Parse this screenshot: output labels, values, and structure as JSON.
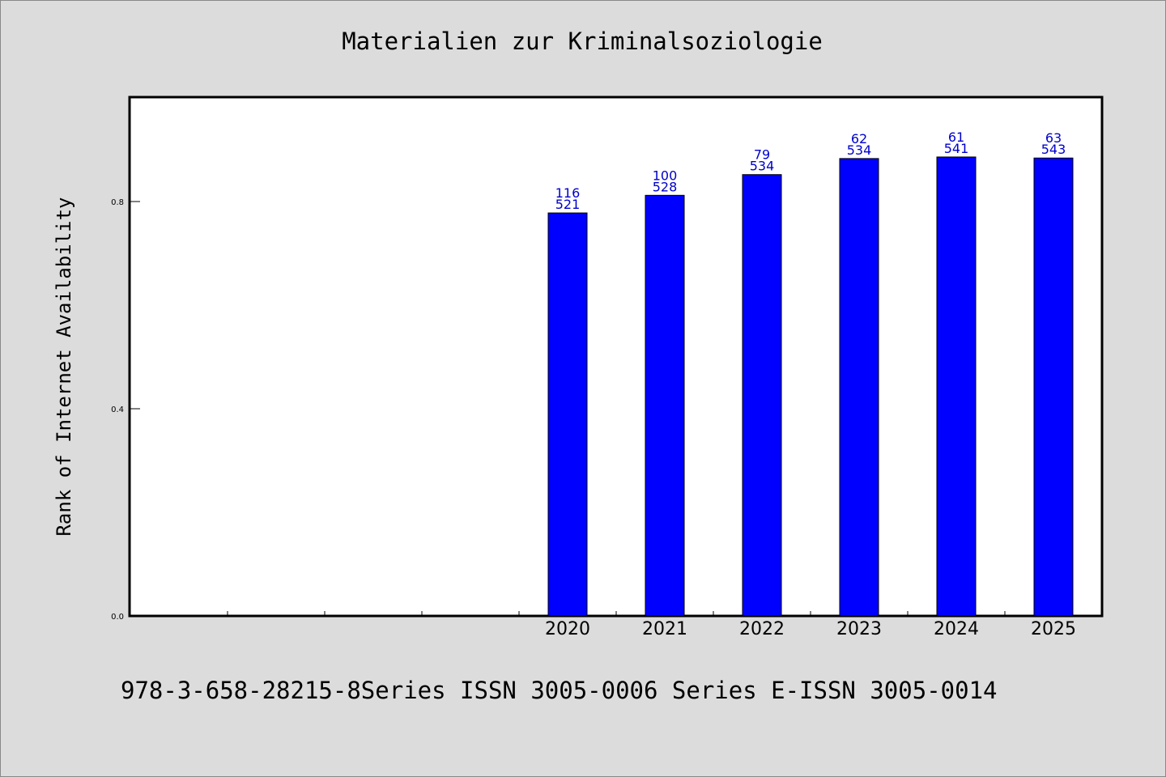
{
  "chart_data": {
    "type": "bar",
    "title": "Materialien zur Kriminalsoziologie",
    "ylabel": "Rank of Internet Availability",
    "xlabel": "",
    "footer": "978-3-658-28215-8Series ISSN 3005-0006 Series E-ISSN 3005-0014",
    "categories": [
      "",
      "",
      "",
      "",
      "2020",
      "2021",
      "2022",
      "2023",
      "2024",
      "2025"
    ],
    "values": [
      null,
      null,
      null,
      null,
      0.778,
      0.812,
      0.852,
      0.883,
      0.886,
      0.884
    ],
    "labels_top": [
      "",
      "",
      "",
      "",
      "116",
      "100",
      "79",
      "62",
      "61",
      "63"
    ],
    "labels_bottom": [
      "",
      "",
      "",
      "",
      "521",
      "528",
      "534",
      "534",
      "541",
      "543"
    ],
    "yticks": [
      "0.0",
      "0.4",
      "0.8"
    ],
    "ylim": [
      0,
      1.0
    ],
    "bar_color": "#0000ff",
    "label_color": "#0000cc",
    "grid": false
  }
}
